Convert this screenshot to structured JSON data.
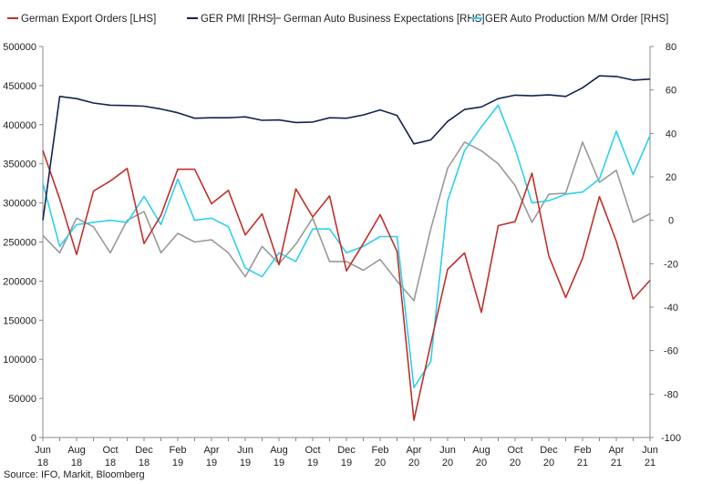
{
  "source": "Source: IFO, Markit, Bloomberg",
  "chart_data": {
    "type": "line",
    "x": [
      "Jun-18",
      "Jul-18",
      "Aug-18",
      "Sep-18",
      "Oct-18",
      "Nov-18",
      "Dec-18",
      "Jan-19",
      "Feb-19",
      "Mar-19",
      "Apr-19",
      "May-19",
      "Jun-19",
      "Jul-19",
      "Aug-19",
      "Sep-19",
      "Oct-19",
      "Nov-19",
      "Dec-19",
      "Jan-20",
      "Feb-20",
      "Mar-20",
      "Apr-20",
      "May-20",
      "Jun-20",
      "Jul-20",
      "Aug-20",
      "Sep-20",
      "Oct-20",
      "Nov-20",
      "Dec-20",
      "Jan-21",
      "Feb-21",
      "Mar-21",
      "Apr-21",
      "May-21",
      "Jun-21"
    ],
    "x_tick_labels": [
      {
        "line1": "Jun",
        "line2": "18"
      },
      {
        "line1": "Aug",
        "line2": "18"
      },
      {
        "line1": "Oct",
        "line2": "18"
      },
      {
        "line1": "Dec",
        "line2": "18"
      },
      {
        "line1": "Feb",
        "line2": "19"
      },
      {
        "line1": "Apr",
        "line2": "19"
      },
      {
        "line1": "Jun",
        "line2": "19"
      },
      {
        "line1": "Aug",
        "line2": "19"
      },
      {
        "line1": "Oct",
        "line2": "19"
      },
      {
        "line1": "Dec",
        "line2": "19"
      },
      {
        "line1": "Feb",
        "line2": "20"
      },
      {
        "line1": "Apr",
        "line2": "20"
      },
      {
        "line1": "Jun",
        "line2": "20"
      },
      {
        "line1": "Aug",
        "line2": "20"
      },
      {
        "line1": "Oct",
        "line2": "20"
      },
      {
        "line1": "Dec",
        "line2": "20"
      },
      {
        "line1": "Feb",
        "line2": "21"
      },
      {
        "line1": "Apr",
        "line2": "21"
      },
      {
        "line1": "Jun",
        "line2": "21"
      }
    ],
    "y_left": {
      "min": 0,
      "max": 500000,
      "ticks": [
        0,
        50000,
        100000,
        150000,
        200000,
        250000,
        300000,
        350000,
        400000,
        450000,
        500000
      ],
      "tick_labels": [
        "0",
        "50000",
        "100000",
        "150000",
        "200000",
        "250000",
        "300000",
        "350000",
        "400000",
        "450000",
        "500000"
      ]
    },
    "y_right": {
      "min": -100,
      "max": 80,
      "ticks": [
        -100,
        -80,
        -60,
        -40,
        -20,
        0,
        20,
        40,
        60,
        80
      ],
      "tick_labels": [
        "-100",
        "-80",
        "-60",
        "-40",
        "-20",
        "0",
        "20",
        "40",
        "60",
        "80"
      ]
    },
    "grid": false,
    "legend_position": "top",
    "series": [
      {
        "name": "German Export Orders [LHS]",
        "axis": "left",
        "color": "#c0302b",
        "values": [
          367000,
          305000,
          234000,
          315000,
          328000,
          344000,
          248000,
          284000,
          343000,
          343000,
          299000,
          316000,
          259000,
          286000,
          221000,
          318000,
          282000,
          309000,
          213000,
          248000,
          285000,
          238000,
          22000,
          120000,
          215000,
          236000,
          160000,
          271000,
          276000,
          338000,
          232000,
          179000,
          229000,
          308000,
          251000,
          177000,
          201000
        ]
      },
      {
        "name": "GER PMI [RHS]",
        "axis": "right",
        "color": "#14224e",
        "values": [
          0,
          57,
          56,
          54,
          53,
          52.8,
          52.5,
          51.2,
          49.5,
          47,
          47.2,
          47.2,
          47.6,
          46,
          46.2,
          45,
          45.2,
          47.2,
          47,
          48.5,
          50.8,
          48.3,
          35.2,
          37,
          45.5,
          51,
          52.2,
          56,
          57.6,
          57.3,
          57.7,
          57,
          61,
          66.5,
          66.2,
          64.5,
          65
        ]
      },
      {
        "name": "German Auto Business Expectations [RHS]",
        "axis": "right",
        "color": "#999999",
        "values": [
          -7,
          -15,
          1,
          -3,
          -15,
          0,
          4,
          -15,
          -6,
          -10,
          -9,
          -15,
          -26,
          -12,
          -20,
          -11,
          1,
          -19,
          -19,
          -23,
          -18,
          -28,
          -37,
          -4,
          24,
          36,
          32,
          26,
          16,
          -1,
          12,
          12.5,
          36,
          17.5,
          23,
          -1,
          3
        ]
      },
      {
        "name": "GER Auto Production M/M Order [RHS]",
        "axis": "right",
        "color": "#2dd0ee",
        "values": [
          17,
          -12,
          -2,
          -1,
          0,
          -1,
          11,
          -2,
          19,
          0,
          1,
          -3,
          -22,
          -26,
          -15,
          -19,
          -4,
          -4,
          -15,
          -12,
          -7.5,
          -7.5,
          -77,
          -65,
          9,
          32,
          43,
          53,
          33,
          8,
          9,
          12,
          13,
          19,
          41,
          21,
          39
        ]
      }
    ]
  }
}
